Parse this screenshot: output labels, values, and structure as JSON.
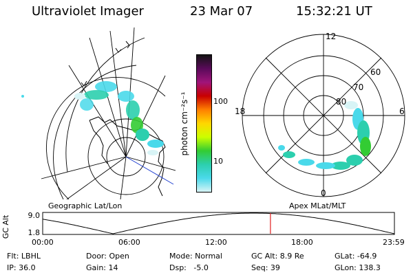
{
  "header": {
    "title": "Ultraviolet Imager",
    "date": "23 Mar 07",
    "time": "15:32:21 UT"
  },
  "colorbar": {
    "label": "photon cm⁻²s⁻¹",
    "ticks": [
      "100",
      "10"
    ],
    "colors": [
      "#141414",
      "#5a0a5a",
      "#a0147a",
      "#c80000",
      "#ff7f00",
      "#ffd700",
      "#ccff00",
      "#33cc33",
      "#2ccfae",
      "#4ad9ea",
      "#d8f4f6"
    ]
  },
  "geo_map": {
    "caption": "Geographic Lat/Lon"
  },
  "polar_map": {
    "caption": "Apex MLat/MLT",
    "mlt_labels": {
      "top": "12",
      "left": "18",
      "right": "6",
      "bottom": "0"
    },
    "lat_labels": [
      "60",
      "70",
      "80"
    ]
  },
  "timeline": {
    "ylabel": "GC Alt",
    "ymax": "9.0",
    "ymin": "1.8",
    "ticks": [
      "00:00",
      "06:00",
      "12:00",
      "18:00",
      "23:59"
    ],
    "marker_time_hours": 15.54
  },
  "info": {
    "flt": "Flt: LBHL",
    "ip": "IP: 36.0",
    "door": "Door: Open",
    "gain": "Gain: 14",
    "mode": "Mode: Normal",
    "dsp": "Dsp:   -5.0",
    "gcalt": "GC Alt: 8.9 Re",
    "seq": "Seq: 39",
    "glat": "GLat: -64.9",
    "glon": "GLon: 138.3"
  }
}
